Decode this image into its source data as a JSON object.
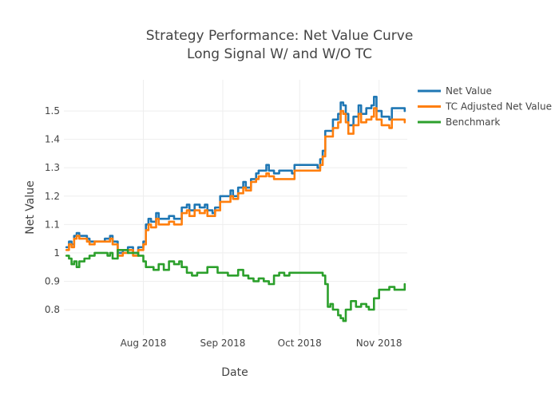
{
  "chart_data": {
    "type": "line",
    "title_lines": [
      "Strategy Performance: Net Value Curve",
      "Long Signal W/ and W/O TC"
    ],
    "xlabel": "Date",
    "ylabel": "Net Value",
    "xlim": [
      "2018-07-01",
      "2018-11-12"
    ],
    "ylim": [
      0.71,
      1.61
    ],
    "x_ticks": [
      {
        "date": "2018-08-01",
        "label": "Aug 2018"
      },
      {
        "date": "2018-09-01",
        "label": "Sep 2018"
      },
      {
        "date": "2018-10-01",
        "label": "Oct 2018"
      },
      {
        "date": "2018-11-01",
        "label": "Nov 2018"
      }
    ],
    "y_ticks": [
      {
        "value": 0.8,
        "label": "0.8"
      },
      {
        "value": 0.9,
        "label": "0.9"
      },
      {
        "value": 1.0,
        "label": "1"
      },
      {
        "value": 1.1,
        "label": "1.1"
      },
      {
        "value": 1.2,
        "label": "1.2"
      },
      {
        "value": 1.3,
        "label": "1.3"
      },
      {
        "value": 1.4,
        "label": "1.4"
      },
      {
        "value": 1.5,
        "label": "1.5"
      }
    ],
    "grid": true,
    "legend_position": "top-right",
    "series": [
      {
        "name": "Net Value",
        "color": "#1f77b4",
        "points": [
          [
            "2018-07-02",
            1.02
          ],
          [
            "2018-07-03",
            1.04
          ],
          [
            "2018-07-04",
            1.03
          ],
          [
            "2018-07-05",
            1.06
          ],
          [
            "2018-07-06",
            1.07
          ],
          [
            "2018-07-07",
            1.06
          ],
          [
            "2018-07-09",
            1.06
          ],
          [
            "2018-07-10",
            1.05
          ],
          [
            "2018-07-11",
            1.04
          ],
          [
            "2018-07-13",
            1.04
          ],
          [
            "2018-07-17",
            1.05
          ],
          [
            "2018-07-19",
            1.06
          ],
          [
            "2018-07-20",
            1.04
          ],
          [
            "2018-07-22",
            1.0
          ],
          [
            "2018-07-24",
            1.01
          ],
          [
            "2018-07-26",
            1.02
          ],
          [
            "2018-07-28",
            1.0
          ],
          [
            "2018-07-30",
            1.02
          ],
          [
            "2018-08-01",
            1.04
          ],
          [
            "2018-08-02",
            1.1
          ],
          [
            "2018-08-03",
            1.12
          ],
          [
            "2018-08-04",
            1.11
          ],
          [
            "2018-08-06",
            1.14
          ],
          [
            "2018-08-07",
            1.12
          ],
          [
            "2018-08-09",
            1.12
          ],
          [
            "2018-08-11",
            1.13
          ],
          [
            "2018-08-13",
            1.12
          ],
          [
            "2018-08-15",
            1.12
          ],
          [
            "2018-08-16",
            1.16
          ],
          [
            "2018-08-18",
            1.17
          ],
          [
            "2018-08-19",
            1.15
          ],
          [
            "2018-08-21",
            1.17
          ],
          [
            "2018-08-23",
            1.16
          ],
          [
            "2018-08-25",
            1.17
          ],
          [
            "2018-08-26",
            1.15
          ],
          [
            "2018-08-28",
            1.14
          ],
          [
            "2018-08-29",
            1.16
          ],
          [
            "2018-08-31",
            1.2
          ],
          [
            "2018-09-02",
            1.2
          ],
          [
            "2018-09-04",
            1.22
          ],
          [
            "2018-09-05",
            1.2
          ],
          [
            "2018-09-07",
            1.23
          ],
          [
            "2018-09-09",
            1.25
          ],
          [
            "2018-09-10",
            1.23
          ],
          [
            "2018-09-12",
            1.26
          ],
          [
            "2018-09-14",
            1.28
          ],
          [
            "2018-09-15",
            1.29
          ],
          [
            "2018-09-17",
            1.29
          ],
          [
            "2018-09-18",
            1.31
          ],
          [
            "2018-09-19",
            1.29
          ],
          [
            "2018-09-21",
            1.28
          ],
          [
            "2018-09-23",
            1.29
          ],
          [
            "2018-09-26",
            1.29
          ],
          [
            "2018-09-28",
            1.28
          ],
          [
            "2018-09-29",
            1.31
          ],
          [
            "2018-10-08",
            1.3
          ],
          [
            "2018-10-09",
            1.33
          ],
          [
            "2018-10-10",
            1.36
          ],
          [
            "2018-10-11",
            1.43
          ],
          [
            "2018-10-13",
            1.43
          ],
          [
            "2018-10-14",
            1.47
          ],
          [
            "2018-10-16",
            1.49
          ],
          [
            "2018-10-17",
            1.53
          ],
          [
            "2018-10-18",
            1.52
          ],
          [
            "2018-10-19",
            1.49
          ],
          [
            "2018-10-20",
            1.45
          ],
          [
            "2018-10-22",
            1.48
          ],
          [
            "2018-10-24",
            1.52
          ],
          [
            "2018-10-25",
            1.49
          ],
          [
            "2018-10-27",
            1.51
          ],
          [
            "2018-10-29",
            1.52
          ],
          [
            "2018-10-30",
            1.55
          ],
          [
            "2018-10-31",
            1.5
          ],
          [
            "2018-11-02",
            1.48
          ],
          [
            "2018-11-03",
            1.48
          ],
          [
            "2018-11-05",
            1.47
          ],
          [
            "2018-11-06",
            1.51
          ],
          [
            "2018-11-09",
            1.51
          ],
          [
            "2018-11-11",
            1.5
          ]
        ]
      },
      {
        "name": "TC Adjusted Net Value",
        "color": "#ff7f0e",
        "points": [
          [
            "2018-07-02",
            1.01
          ],
          [
            "2018-07-03",
            1.03
          ],
          [
            "2018-07-04",
            1.02
          ],
          [
            "2018-07-05",
            1.05
          ],
          [
            "2018-07-06",
            1.06
          ],
          [
            "2018-07-07",
            1.05
          ],
          [
            "2018-07-09",
            1.05
          ],
          [
            "2018-07-10",
            1.04
          ],
          [
            "2018-07-11",
            1.03
          ],
          [
            "2018-07-13",
            1.04
          ],
          [
            "2018-07-17",
            1.04
          ],
          [
            "2018-07-19",
            1.05
          ],
          [
            "2018-07-20",
            1.03
          ],
          [
            "2018-07-22",
            0.99
          ],
          [
            "2018-07-24",
            1.0
          ],
          [
            "2018-07-26",
            1.01
          ],
          [
            "2018-07-28",
            0.99
          ],
          [
            "2018-07-30",
            1.01
          ],
          [
            "2018-08-01",
            1.03
          ],
          [
            "2018-08-02",
            1.08
          ],
          [
            "2018-08-03",
            1.1
          ],
          [
            "2018-08-04",
            1.09
          ],
          [
            "2018-08-06",
            1.12
          ],
          [
            "2018-08-07",
            1.1
          ],
          [
            "2018-08-09",
            1.1
          ],
          [
            "2018-08-11",
            1.11
          ],
          [
            "2018-08-13",
            1.1
          ],
          [
            "2018-08-15",
            1.1
          ],
          [
            "2018-08-16",
            1.14
          ],
          [
            "2018-08-18",
            1.15
          ],
          [
            "2018-08-19",
            1.13
          ],
          [
            "2018-08-21",
            1.15
          ],
          [
            "2018-08-23",
            1.14
          ],
          [
            "2018-08-25",
            1.15
          ],
          [
            "2018-08-26",
            1.13
          ],
          [
            "2018-08-28",
            1.13
          ],
          [
            "2018-08-29",
            1.15
          ],
          [
            "2018-08-31",
            1.18
          ],
          [
            "2018-09-02",
            1.18
          ],
          [
            "2018-09-04",
            1.2
          ],
          [
            "2018-09-05",
            1.19
          ],
          [
            "2018-09-07",
            1.21
          ],
          [
            "2018-09-09",
            1.23
          ],
          [
            "2018-09-10",
            1.22
          ],
          [
            "2018-09-12",
            1.25
          ],
          [
            "2018-09-14",
            1.26
          ],
          [
            "2018-09-15",
            1.27
          ],
          [
            "2018-09-17",
            1.27
          ],
          [
            "2018-09-18",
            1.28
          ],
          [
            "2018-09-19",
            1.27
          ],
          [
            "2018-09-21",
            1.26
          ],
          [
            "2018-09-23",
            1.26
          ],
          [
            "2018-09-26",
            1.26
          ],
          [
            "2018-09-28",
            1.26
          ],
          [
            "2018-09-29",
            1.29
          ],
          [
            "2018-10-08",
            1.29
          ],
          [
            "2018-10-09",
            1.31
          ],
          [
            "2018-10-10",
            1.34
          ],
          [
            "2018-10-11",
            1.41
          ],
          [
            "2018-10-13",
            1.41
          ],
          [
            "2018-10-14",
            1.44
          ],
          [
            "2018-10-16",
            1.46
          ],
          [
            "2018-10-17",
            1.5
          ],
          [
            "2018-10-18",
            1.49
          ],
          [
            "2018-10-19",
            1.46
          ],
          [
            "2018-10-20",
            1.42
          ],
          [
            "2018-10-22",
            1.45
          ],
          [
            "2018-10-24",
            1.49
          ],
          [
            "2018-10-25",
            1.46
          ],
          [
            "2018-10-27",
            1.47
          ],
          [
            "2018-10-29",
            1.48
          ],
          [
            "2018-10-30",
            1.51
          ],
          [
            "2018-10-31",
            1.47
          ],
          [
            "2018-11-02",
            1.45
          ],
          [
            "2018-11-03",
            1.45
          ],
          [
            "2018-11-05",
            1.44
          ],
          [
            "2018-11-06",
            1.47
          ],
          [
            "2018-11-09",
            1.47
          ],
          [
            "2018-11-11",
            1.46
          ]
        ]
      },
      {
        "name": "Benchmark",
        "color": "#2ca02c",
        "points": [
          [
            "2018-07-02",
            0.99
          ],
          [
            "2018-07-03",
            0.98
          ],
          [
            "2018-07-04",
            0.96
          ],
          [
            "2018-07-05",
            0.97
          ],
          [
            "2018-07-06",
            0.95
          ],
          [
            "2018-07-07",
            0.97
          ],
          [
            "2018-07-09",
            0.98
          ],
          [
            "2018-07-11",
            0.99
          ],
          [
            "2018-07-13",
            1.0
          ],
          [
            "2018-07-15",
            1.0
          ],
          [
            "2018-07-17",
            1.0
          ],
          [
            "2018-07-18",
            0.99
          ],
          [
            "2018-07-19",
            1.0
          ],
          [
            "2018-07-20",
            0.98
          ],
          [
            "2018-07-22",
            1.01
          ],
          [
            "2018-07-24",
            1.01
          ],
          [
            "2018-07-26",
            1.0
          ],
          [
            "2018-07-28",
            1.0
          ],
          [
            "2018-07-30",
            0.99
          ],
          [
            "2018-08-01",
            0.97
          ],
          [
            "2018-08-02",
            0.95
          ],
          [
            "2018-08-05",
            0.94
          ],
          [
            "2018-08-07",
            0.96
          ],
          [
            "2018-08-09",
            0.94
          ],
          [
            "2018-08-11",
            0.97
          ],
          [
            "2018-08-13",
            0.96
          ],
          [
            "2018-08-15",
            0.97
          ],
          [
            "2018-08-16",
            0.95
          ],
          [
            "2018-08-18",
            0.93
          ],
          [
            "2018-08-20",
            0.92
          ],
          [
            "2018-08-22",
            0.93
          ],
          [
            "2018-08-24",
            0.93
          ],
          [
            "2018-08-26",
            0.95
          ],
          [
            "2018-08-28",
            0.95
          ],
          [
            "2018-08-30",
            0.93
          ],
          [
            "2018-09-01",
            0.93
          ],
          [
            "2018-09-03",
            0.92
          ],
          [
            "2018-09-05",
            0.92
          ],
          [
            "2018-09-07",
            0.94
          ],
          [
            "2018-09-09",
            0.92
          ],
          [
            "2018-09-11",
            0.91
          ],
          [
            "2018-09-13",
            0.9
          ],
          [
            "2018-09-15",
            0.91
          ],
          [
            "2018-09-17",
            0.9
          ],
          [
            "2018-09-19",
            0.89
          ],
          [
            "2018-09-21",
            0.92
          ],
          [
            "2018-09-23",
            0.93
          ],
          [
            "2018-09-25",
            0.92
          ],
          [
            "2018-09-27",
            0.93
          ],
          [
            "2018-09-29",
            0.93
          ],
          [
            "2018-10-10",
            0.92
          ],
          [
            "2018-10-11",
            0.89
          ],
          [
            "2018-10-12",
            0.81
          ],
          [
            "2018-10-13",
            0.82
          ],
          [
            "2018-10-14",
            0.8
          ],
          [
            "2018-10-16",
            0.78
          ],
          [
            "2018-10-17",
            0.77
          ],
          [
            "2018-10-18",
            0.76
          ],
          [
            "2018-10-19",
            0.8
          ],
          [
            "2018-10-21",
            0.83
          ],
          [
            "2018-10-23",
            0.81
          ],
          [
            "2018-10-25",
            0.82
          ],
          [
            "2018-10-27",
            0.81
          ],
          [
            "2018-10-28",
            0.8
          ],
          [
            "2018-10-30",
            0.84
          ],
          [
            "2018-11-01",
            0.87
          ],
          [
            "2018-11-03",
            0.87
          ],
          [
            "2018-11-05",
            0.88
          ],
          [
            "2018-11-07",
            0.87
          ],
          [
            "2018-11-09",
            0.87
          ],
          [
            "2018-11-11",
            0.89
          ]
        ]
      }
    ]
  }
}
